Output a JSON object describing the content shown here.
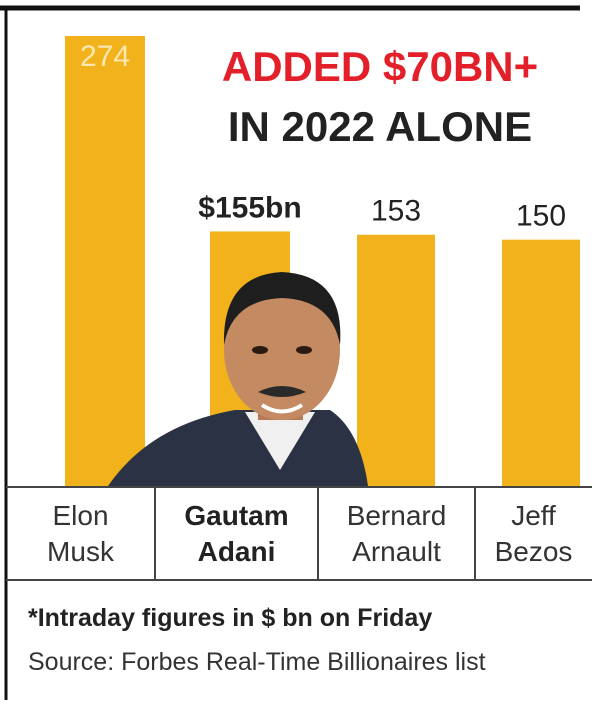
{
  "chart_data": {
    "type": "bar",
    "title": "ADDED $70BN+",
    "subtitle": "IN 2022 ALONE",
    "categories": [
      "Elon Musk",
      "Gautam Adani",
      "Bernard Arnault",
      "Jeff Bezos"
    ],
    "values": [
      274,
      155,
      153,
      150
    ],
    "value_labels": [
      "274",
      "$155bn",
      "153",
      "150"
    ],
    "color": "#f2b21c",
    "footnote": "*Intraday figures in $ bn on Friday",
    "source": "Source: Forbes Real-Time Billionaires list"
  }
}
